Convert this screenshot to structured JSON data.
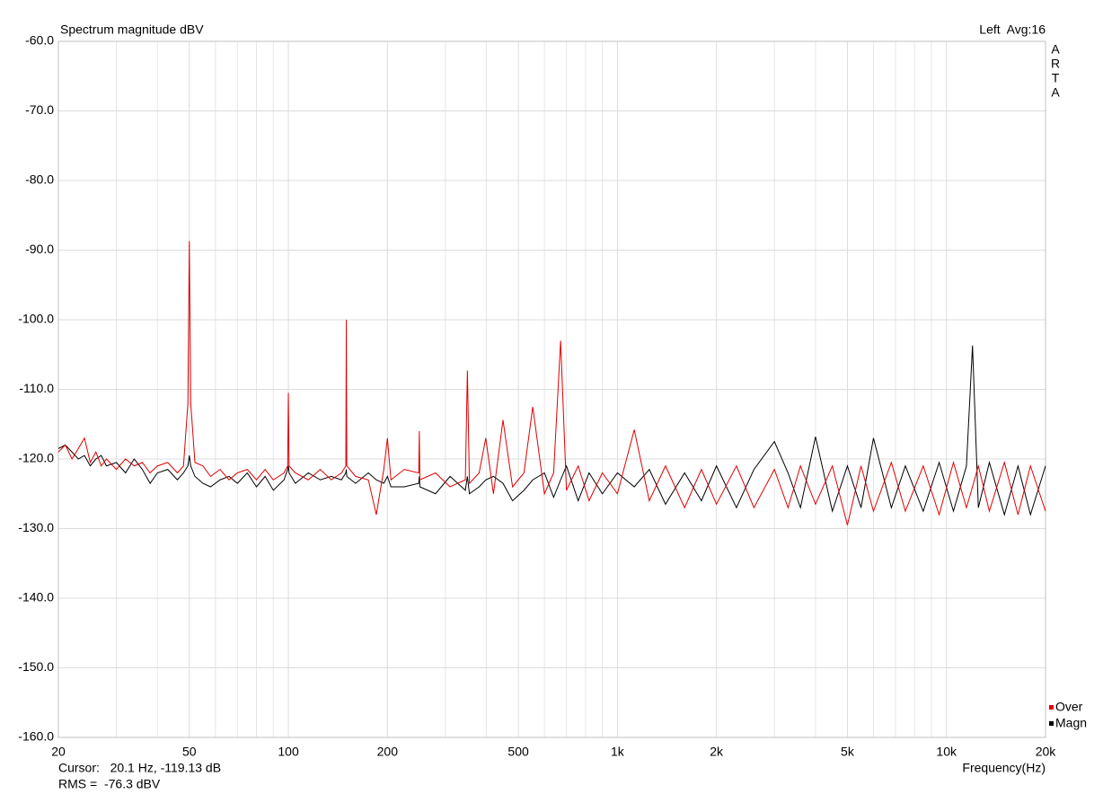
{
  "chart_data": {
    "type": "line",
    "title": "Spectrum magnitude dBV",
    "channel_label": "Left  Avg:16",
    "brand": [
      "A",
      "R",
      "T",
      "A"
    ],
    "x_label": "Frequency(Hz)",
    "cursor_label": "Cursor:   20.1 Hz, -119.13 dB",
    "rms_label": "RMS =  -76.3 dBV",
    "rms_color": "#c00000",
    "xscale": "log",
    "grid": true,
    "legend": "lower right",
    "xlim": [
      20,
      20000
    ],
    "xticks": [
      20,
      50,
      100,
      200,
      500,
      {
        "value": 1000,
        "label": "1k"
      },
      {
        "value": 2000,
        "label": "2k"
      },
      {
        "value": 5000,
        "label": "5k"
      },
      {
        "value": 10000,
        "label": "10k"
      },
      {
        "value": 20000,
        "label": "20k"
      }
    ],
    "xminorticks": [
      30,
      40,
      60,
      70,
      80,
      90,
      300,
      400,
      600,
      700,
      800,
      900,
      3000,
      4000,
      6000,
      7000,
      8000,
      9000
    ],
    "ylim": [
      -160,
      -60
    ],
    "yticks": [
      {
        "value": -60,
        "label": "-60.0"
      },
      {
        "value": -70,
        "label": "-70.0"
      },
      {
        "value": -80,
        "label": "-80.0"
      },
      {
        "value": -90,
        "label": "-90.0"
      },
      {
        "value": -100,
        "label": "-100.0"
      },
      {
        "value": -110,
        "label": "-110.0"
      },
      {
        "value": -120,
        "label": "-120.0"
      },
      {
        "value": -130,
        "label": "-130.0"
      },
      {
        "value": -140,
        "label": "-140.0"
      },
      {
        "value": -150,
        "label": "-150.0"
      },
      {
        "value": -160,
        "label": "-160.0"
      }
    ],
    "x": [
      20,
      21,
      22,
      23,
      24,
      25,
      26,
      27,
      28,
      30,
      32,
      34,
      36,
      38,
      40,
      43,
      46,
      48,
      49.5,
      50,
      50.5,
      52,
      55,
      58,
      62,
      66,
      70,
      75,
      80,
      85,
      90,
      97,
      99.5,
      100,
      100.5,
      105,
      115,
      125,
      135,
      145,
      149.5,
      150,
      150.5,
      160,
      175,
      185,
      195,
      200,
      205,
      225,
      249,
      250,
      251,
      280,
      310,
      345,
      350,
      355,
      380,
      398,
      420,
      449,
      480,
      520,
      553,
      600,
      640,
      672,
      700,
      760,
      820,
      900,
      1000,
      1125,
      1250,
      1400,
      1600,
      1800,
      2000,
      2300,
      2600,
      3000,
      3300,
      3600,
      4000,
      4500,
      5000,
      5500,
      6000,
      6800,
      7500,
      8500,
      9500,
      10500,
      11500,
      12000,
      12500,
      13500,
      15000,
      16500,
      18000,
      20000
    ],
    "series": [
      {
        "name": "Over",
        "color": "#e00000",
        "values": [
          -119,
          -118,
          -120,
          -118.5,
          -117,
          -120.5,
          -119,
          -121,
          -120,
          -121.5,
          -120,
          -121,
          -120.5,
          -122,
          -121,
          -120.5,
          -122,
          -121,
          -112,
          -88.7,
          -112,
          -120.5,
          -121,
          -122.5,
          -121.5,
          -123,
          -122,
          -121.5,
          -123,
          -121.5,
          -123,
          -122,
          -121,
          -110.5,
          -121,
          -122,
          -123,
          -121.5,
          -123,
          -122,
          -121,
          -100,
          -121,
          -122.5,
          -123,
          -128,
          -121.5,
          -117,
          -123,
          -121.5,
          -122,
          -116,
          -123,
          -122,
          -124,
          -123,
          -107.3,
          -123.5,
          -122,
          -117,
          -125,
          -114.4,
          -124,
          -122,
          -112.5,
          -125,
          -122,
          -103,
          -124.5,
          -121,
          -126,
          -122,
          -125,
          -115.8,
          -126,
          -121,
          -127,
          -121.5,
          -126.5,
          -121,
          -127,
          -121.5,
          -127,
          -121,
          -126.5,
          -121,
          -129.5,
          -121,
          -127.5,
          -120.5,
          -127.5,
          -121,
          -128,
          -120.5,
          -127,
          -124,
          -121,
          -127.5,
          -120.5,
          -128,
          -121,
          -127.5
        ]
      },
      {
        "name": "Magn",
        "color": "#000000",
        "values": [
          -118.5,
          -118,
          -119,
          -120,
          -119.5,
          -121,
          -120,
          -119.5,
          -121,
          -120.5,
          -122,
          -120,
          -121.5,
          -123.5,
          -122,
          -121.5,
          -123,
          -122,
          -121,
          -119.5,
          -121,
          -122.5,
          -123.5,
          -124,
          -123,
          -122.5,
          -123.5,
          -122,
          -124,
          -122.5,
          -124.5,
          -123,
          -121.5,
          -121,
          -122,
          -123.5,
          -122,
          -123,
          -122.5,
          -123,
          -122,
          -121.5,
          -122.5,
          -123.5,
          -122,
          -123,
          -123.5,
          -122.5,
          -124,
          -124,
          -123.5,
          -122.5,
          -124,
          -125,
          -122.5,
          -124.5,
          -122.5,
          -125,
          -124,
          -123,
          -122.5,
          -123.5,
          -126,
          -124.5,
          -123,
          -122,
          -125.5,
          -123,
          -121,
          -126,
          -122,
          -125,
          -122,
          -124,
          -121.5,
          -126.5,
          -122,
          -126,
          -121,
          -127,
          -121.5,
          -117.5,
          -122,
          -127,
          -116.8,
          -127.5,
          -121,
          -127,
          -117,
          -127,
          -121,
          -127.5,
          -120.5,
          -127.5,
          -121,
          -103.7,
          -127,
          -120.5,
          -128,
          -121,
          -128,
          -121
        ]
      }
    ]
  }
}
